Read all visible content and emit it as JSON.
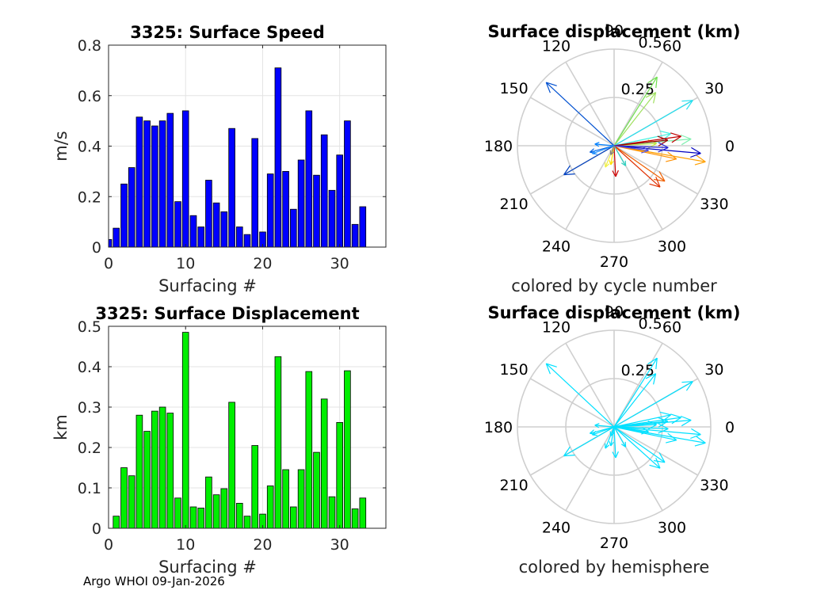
{
  "footer": "Argo WHOI 09-Jan-2026",
  "chart_data": [
    {
      "type": "bar",
      "title": "3325: Surface Speed",
      "xlabel": "Surfacing #",
      "ylabel": "m/s",
      "xlim": [
        0,
        36
      ],
      "ylim": [
        0,
        0.8
      ],
      "xticks": [
        "0",
        "10",
        "20",
        "30"
      ],
      "yticks": [
        "0",
        "0.2",
        "0.4",
        "0.6",
        "0.8"
      ],
      "color": "#0000ff",
      "x": [
        0,
        1,
        2,
        3,
        4,
        5,
        6,
        7,
        8,
        9,
        10,
        11,
        12,
        13,
        14,
        15,
        16,
        17,
        18,
        19,
        20,
        21,
        22,
        23,
        24,
        25,
        26,
        27,
        28,
        29,
        30,
        31,
        32,
        33
      ],
      "values": [
        0.03,
        0.075,
        0.25,
        0.315,
        0.515,
        0.5,
        0.48,
        0.5,
        0.53,
        0.18,
        0.54,
        0.125,
        0.08,
        0.265,
        0.175,
        0.14,
        0.47,
        0.08,
        0.05,
        0.43,
        0.06,
        0.29,
        0.71,
        0.3,
        0.15,
        0.345,
        0.54,
        0.285,
        0.445,
        0.225,
        0.365,
        0.5,
        0.09,
        0.16
      ]
    },
    {
      "type": "bar",
      "title": "3325: Surface Displacement",
      "xlabel": "Surfacing #",
      "ylabel": "km",
      "xlim": [
        0,
        36
      ],
      "ylim": [
        0,
        0.5
      ],
      "xticks": [
        "0",
        "10",
        "20",
        "30"
      ],
      "yticks": [
        "0",
        "0.1",
        "0.2",
        "0.3",
        "0.4",
        "0.5"
      ],
      "color": "#00ee00",
      "x": [
        1,
        2,
        3,
        4,
        5,
        6,
        7,
        8,
        9,
        10,
        11,
        12,
        13,
        14,
        15,
        16,
        17,
        18,
        19,
        20,
        21,
        22,
        23,
        24,
        25,
        26,
        27,
        28,
        29,
        30,
        31,
        32,
        33
      ],
      "values": [
        0.03,
        0.15,
        0.13,
        0.28,
        0.24,
        0.29,
        0.3,
        0.285,
        0.075,
        0.485,
        0.053,
        0.05,
        0.127,
        0.083,
        0.098,
        0.312,
        0.062,
        0.03,
        0.205,
        0.035,
        0.105,
        0.425,
        0.145,
        0.053,
        0.145,
        0.388,
        0.188,
        0.32,
        0.078,
        0.262,
        0.39,
        0.048,
        0.075
      ]
    },
    {
      "type": "polar",
      "title": "Surface displacement (km)",
      "caption": "colored by cycle number",
      "rmax": 0.5,
      "rticks": [
        "0.25",
        "0.5"
      ],
      "angle_labels": [
        "0",
        "30",
        "60",
        "90",
        "120",
        "150",
        "180",
        "210",
        "240",
        "270",
        "300",
        "330"
      ],
      "vectors": [
        {
          "angle": 137,
          "r": 0.48,
          "color": "#0050d0"
        },
        {
          "angle": 210,
          "r": 0.3,
          "color": "#0040c0"
        },
        {
          "angle": 195,
          "r": 0.13,
          "color": "#0060e0"
        },
        {
          "angle": 200,
          "r": 0.12,
          "color": "#2090ff"
        },
        {
          "angle": 58,
          "r": 0.42,
          "color": "#70e050"
        },
        {
          "angle": 52,
          "r": 0.35,
          "color": "#a0e060"
        },
        {
          "angle": 30,
          "r": 0.47,
          "color": "#20e0f0"
        },
        {
          "angle": 12,
          "r": 0.3,
          "color": "#40f0e0"
        },
        {
          "angle": 5,
          "r": 0.4,
          "color": "#80f0b0"
        },
        {
          "angle": 3,
          "r": 0.22,
          "color": "#c0e040"
        },
        {
          "angle": -10,
          "r": 0.48,
          "color": "#ffa000"
        },
        {
          "angle": -12,
          "r": 0.33,
          "color": "#ff9000"
        },
        {
          "angle": -35,
          "r": 0.32,
          "color": "#f06000"
        },
        {
          "angle": -42,
          "r": 0.32,
          "color": "#e03000"
        },
        {
          "angle": 8,
          "r": 0.35,
          "color": "#c00000"
        },
        {
          "angle": 6,
          "r": 0.28,
          "color": "#a00000"
        },
        {
          "angle": -87,
          "r": 0.16,
          "color": "#cc0000"
        },
        {
          "angle": -100,
          "r": 0.1,
          "color": "#ffe000"
        },
        {
          "angle": -112,
          "r": 0.12,
          "color": "#f0f040"
        },
        {
          "angle": -60,
          "r": 0.12,
          "color": "#30d0c0"
        },
        {
          "angle": -5,
          "r": 0.45,
          "color": "#0000c0"
        },
        {
          "angle": -2,
          "r": 0.28,
          "color": "#2020d0"
        },
        {
          "angle": -8,
          "r": 0.18,
          "color": "#5050e0"
        },
        {
          "angle": 175,
          "r": 0.1,
          "color": "#0080ff"
        },
        {
          "angle": 250,
          "r": 0.05,
          "color": "#808080"
        }
      ]
    },
    {
      "type": "polar",
      "title": "Surface displacement (km)",
      "caption": "colored by hemisphere",
      "rmax": 0.5,
      "rticks": [
        "0.25",
        "0.5"
      ],
      "angle_labels": [
        "0",
        "30",
        "60",
        "90",
        "120",
        "150",
        "180",
        "210",
        "240",
        "270",
        "300",
        "330"
      ],
      "color": "#00e0ff",
      "vectors": [
        {
          "angle": 137,
          "r": 0.48
        },
        {
          "angle": 210,
          "r": 0.3
        },
        {
          "angle": 195,
          "r": 0.13
        },
        {
          "angle": 200,
          "r": 0.12
        },
        {
          "angle": 58,
          "r": 0.42
        },
        {
          "angle": 52,
          "r": 0.35
        },
        {
          "angle": 30,
          "r": 0.47
        },
        {
          "angle": 12,
          "r": 0.3
        },
        {
          "angle": 5,
          "r": 0.4
        },
        {
          "angle": 3,
          "r": 0.22
        },
        {
          "angle": -10,
          "r": 0.48
        },
        {
          "angle": -12,
          "r": 0.33
        },
        {
          "angle": -35,
          "r": 0.32
        },
        {
          "angle": -42,
          "r": 0.32
        },
        {
          "angle": 8,
          "r": 0.35
        },
        {
          "angle": 6,
          "r": 0.28
        },
        {
          "angle": -87,
          "r": 0.16
        },
        {
          "angle": -100,
          "r": 0.1
        },
        {
          "angle": -112,
          "r": 0.12
        },
        {
          "angle": -60,
          "r": 0.12
        },
        {
          "angle": -5,
          "r": 0.45
        },
        {
          "angle": -2,
          "r": 0.28
        },
        {
          "angle": -8,
          "r": 0.18
        },
        {
          "angle": 175,
          "r": 0.1
        },
        {
          "angle": 250,
          "r": 0.05
        }
      ]
    }
  ]
}
